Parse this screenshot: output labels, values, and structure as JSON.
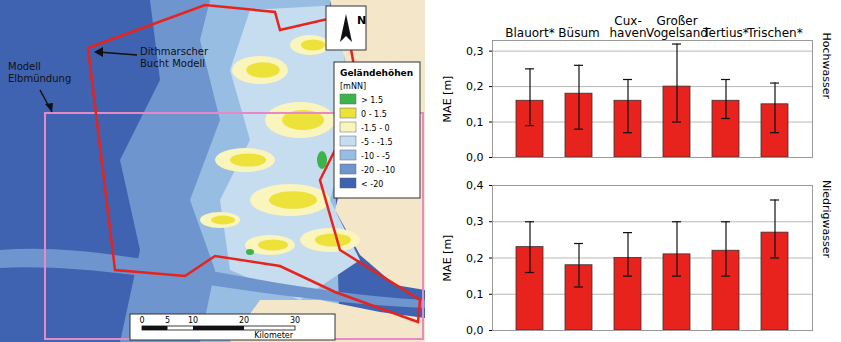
{
  "map": {
    "labels": {
      "elbe": "Modell Elbmündung",
      "dithmarschen": "Dithmarscher\nBucht Modell",
      "north": "N"
    },
    "legend": {
      "title": "Geländehöhen",
      "unit": "[mNN]",
      "items": [
        {
          "label": "> 1.5",
          "color": "#3cb44b"
        },
        {
          "label": "0 - 1.5",
          "color": "#ece23a"
        },
        {
          "label": "-1.5 - 0",
          "color": "#faf4bd"
        },
        {
          "label": "-5 - -1.5",
          "color": "#c6dcef"
        },
        {
          "label": "-10 - -5",
          "color": "#97bde2"
        },
        {
          "label": "-20 - -10",
          "color": "#6f95cf"
        },
        {
          "label": "< -20",
          "color": "#3f63b0"
        }
      ]
    },
    "scale": {
      "ticks": [
        0,
        5,
        10,
        20,
        30
      ],
      "label": "Kilometer"
    }
  },
  "chart_data": [
    {
      "type": "bar",
      "title": "Hochwasser",
      "y_label": "MAE [m]",
      "categories": [
        "Blauort*",
        "Büsum",
        "Cux-\nhaven",
        "Großer\nVogelsand",
        "Tertius*",
        "Trischen*"
      ],
      "values": [
        0.16,
        0.18,
        0.16,
        0.2,
        0.16,
        0.15
      ],
      "error_low": [
        0.09,
        0.08,
        0.07,
        0.1,
        0.11,
        0.07
      ],
      "error_high": [
        0.25,
        0.26,
        0.22,
        0.32,
        0.22,
        0.21
      ],
      "color": "#e8221c",
      "grid": true,
      "ylim": [
        0,
        0.33
      ],
      "yticks": [
        {
          "value": 0,
          "label": "0,0"
        },
        {
          "value": 0.1,
          "label": "0,1"
        },
        {
          "value": 0.2,
          "label": "0,2"
        },
        {
          "value": 0.3,
          "label": "0,3"
        }
      ]
    },
    {
      "type": "bar",
      "title": "Niedrigwasser",
      "y_label": "MAE [m]",
      "categories": [
        "Blauort*",
        "Büsum",
        "Cux-\nhaven",
        "Großer\nVogelsand",
        "Tertius*",
        "Trischen*"
      ],
      "values": [
        0.23,
        0.18,
        0.2,
        0.21,
        0.22,
        0.27
      ],
      "error_low": [
        0.16,
        0.12,
        0.15,
        0.15,
        0.15,
        0.2
      ],
      "error_high": [
        0.3,
        0.24,
        0.27,
        0.3,
        0.3,
        0.36
      ],
      "color": "#e8221c",
      "grid": true,
      "tick_labels": "y",
      "ylim": [
        0,
        0.4
      ],
      "yticks": [
        {
          "value": 0,
          "label": "0,0"
        },
        {
          "value": 0.1,
          "label": "0,1"
        },
        {
          "value": 0.2,
          "label": "0,2"
        },
        {
          "value": 0.3,
          "label": "0,3"
        },
        {
          "value": 0.4,
          "label": "0,4"
        }
      ]
    }
  ]
}
